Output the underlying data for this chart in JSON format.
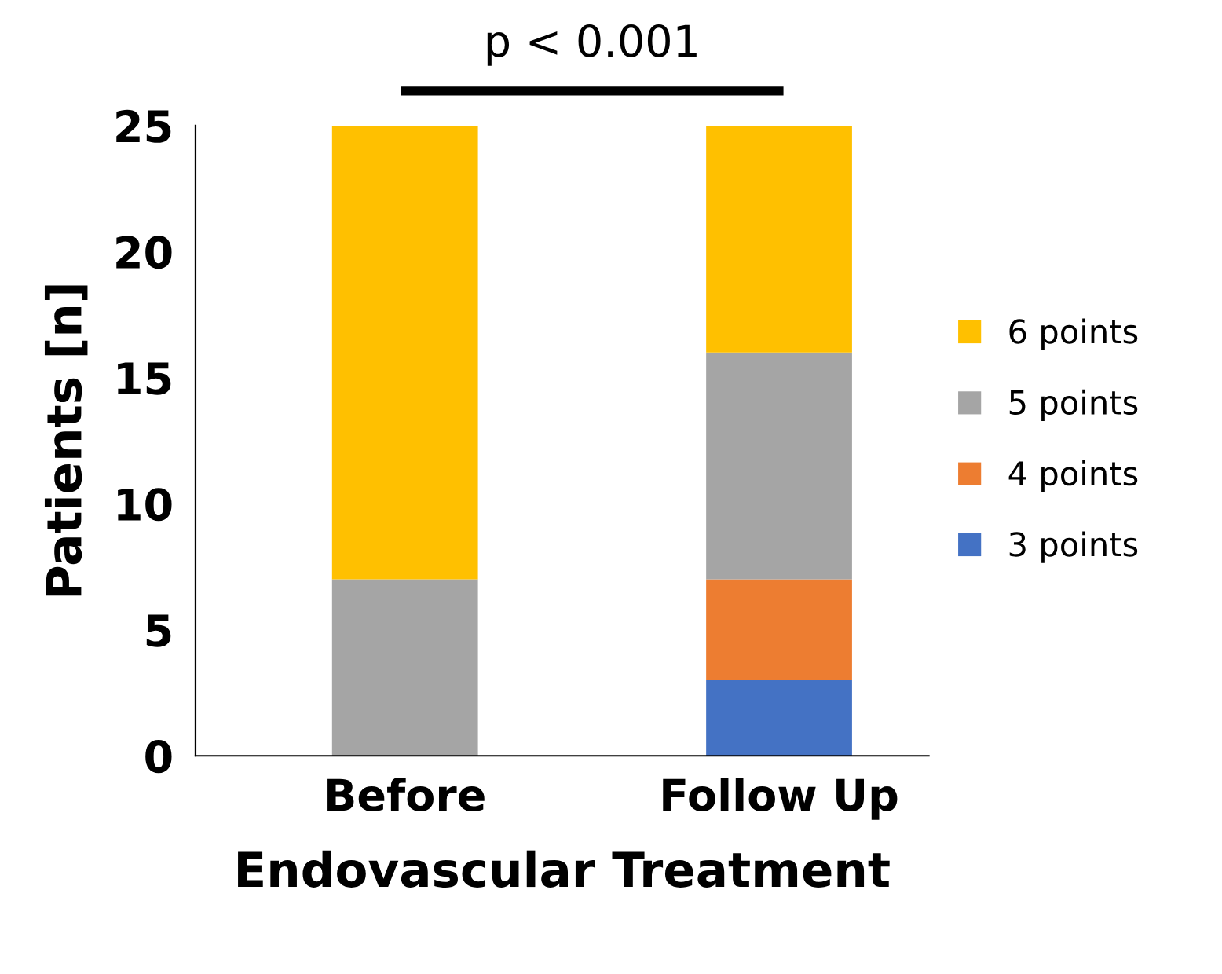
{
  "chart_data": {
    "type": "bar",
    "stacked": true,
    "xlabel": "Endovascular Treatment",
    "ylabel": "Patients [n]",
    "categories": [
      "Before",
      "Follow Up"
    ],
    "series": [
      {
        "name": "3 points",
        "color": "#4472c4",
        "values": [
          0,
          3
        ]
      },
      {
        "name": "4 points",
        "color": "#ed7d31",
        "values": [
          0,
          4
        ]
      },
      {
        "name": "5 points",
        "color": "#a5a5a5",
        "values": [
          7,
          9
        ]
      },
      {
        "name": "6 points",
        "color": "#ffc000",
        "values": [
          18,
          9
        ]
      }
    ],
    "ylim": [
      0,
      25
    ],
    "yticks": [
      0,
      5,
      10,
      15,
      20,
      25
    ],
    "grid": false,
    "legend": "right",
    "annotations": [
      "p < 0.001"
    ]
  }
}
